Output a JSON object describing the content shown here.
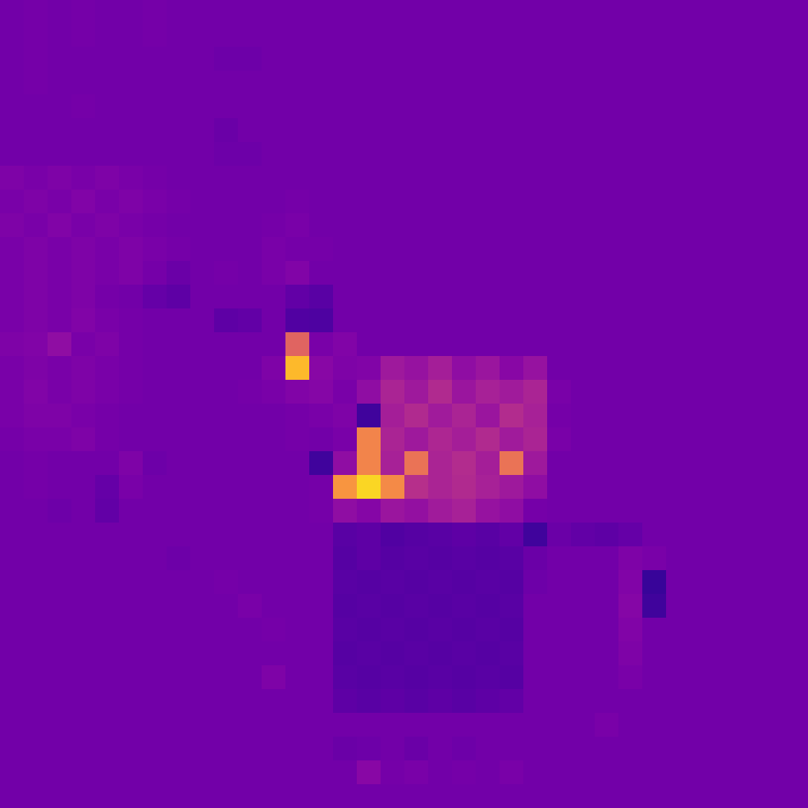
{
  "chart_data": {
    "type": "heatmap",
    "color": "plasma",
    "color_range": [
      0,
      100
    ],
    "tick_labels": false,
    "cells": [
      [
        22,
        23,
        22,
        23,
        22,
        22,
        23,
        22,
        22,
        22,
        22,
        22,
        22,
        22,
        22,
        22,
        22,
        22,
        22,
        22,
        22,
        22,
        22,
        22,
        22,
        22,
        22,
        22,
        22,
        22,
        22,
        22,
        22,
        22
      ],
      [
        22,
        23,
        22,
        23,
        22,
        22,
        23,
        22,
        22,
        22,
        22,
        22,
        22,
        22,
        22,
        22,
        22,
        22,
        22,
        22,
        22,
        22,
        22,
        22,
        22,
        22,
        22,
        22,
        22,
        22,
        22,
        22,
        22,
        22
      ],
      [
        22,
        23,
        22,
        22,
        22,
        22,
        22,
        22,
        22,
        21,
        21,
        22,
        22,
        22,
        22,
        22,
        22,
        22,
        22,
        22,
        22,
        22,
        22,
        22,
        22,
        22,
        22,
        22,
        22,
        22,
        22,
        22,
        22,
        22
      ],
      [
        22,
        23,
        22,
        22,
        22,
        22,
        22,
        22,
        22,
        22,
        22,
        22,
        22,
        22,
        22,
        22,
        22,
        22,
        22,
        22,
        22,
        22,
        22,
        22,
        22,
        22,
        22,
        22,
        22,
        22,
        22,
        22,
        22,
        22
      ],
      [
        22,
        22,
        22,
        23,
        22,
        22,
        22,
        22,
        22,
        22,
        22,
        22,
        22,
        22,
        22,
        22,
        22,
        22,
        22,
        22,
        22,
        22,
        22,
        22,
        22,
        22,
        22,
        22,
        22,
        22,
        22,
        22,
        22,
        22
      ],
      [
        22,
        22,
        22,
        22,
        22,
        22,
        22,
        22,
        22,
        20,
        22,
        22,
        22,
        22,
        22,
        22,
        22,
        22,
        22,
        22,
        22,
        22,
        22,
        22,
        22,
        22,
        22,
        22,
        22,
        22,
        22,
        22,
        22,
        22
      ],
      [
        22,
        22,
        22,
        22,
        22,
        22,
        22,
        22,
        22,
        21,
        21,
        22,
        22,
        22,
        22,
        22,
        22,
        22,
        22,
        22,
        22,
        22,
        22,
        22,
        22,
        22,
        22,
        22,
        22,
        22,
        22,
        22,
        22,
        22
      ],
      [
        25,
        24,
        25,
        24,
        25,
        24,
        23,
        22,
        22,
        22,
        22,
        22,
        22,
        22,
        22,
        22,
        22,
        22,
        22,
        22,
        22,
        22,
        22,
        22,
        22,
        22,
        22,
        22,
        22,
        22,
        22,
        22,
        22,
        22
      ],
      [
        24,
        25,
        24,
        26,
        24,
        25,
        24,
        23,
        22,
        22,
        22,
        22,
        23,
        22,
        22,
        22,
        22,
        22,
        22,
        22,
        22,
        22,
        22,
        22,
        22,
        22,
        22,
        22,
        22,
        22,
        22,
        22,
        22,
        22
      ],
      [
        25,
        24,
        26,
        24,
        25,
        24,
        23,
        22,
        22,
        22,
        22,
        23,
        24,
        22,
        22,
        22,
        22,
        22,
        22,
        22,
        22,
        22,
        22,
        22,
        22,
        22,
        22,
        22,
        22,
        22,
        22,
        22,
        22,
        22
      ],
      [
        24,
        25,
        24,
        25,
        24,
        25,
        24,
        23,
        22,
        22,
        22,
        24,
        23,
        23,
        22,
        22,
        22,
        22,
        22,
        22,
        22,
        22,
        22,
        22,
        22,
        22,
        22,
        22,
        22,
        22,
        22,
        22,
        22,
        22
      ],
      [
        24,
        25,
        24,
        25,
        24,
        25,
        23,
        20,
        22,
        23,
        22,
        24,
        26,
        22,
        22,
        22,
        22,
        22,
        22,
        22,
        22,
        22,
        22,
        22,
        22,
        22,
        22,
        22,
        22,
        22,
        22,
        22,
        22,
        22
      ],
      [
        24,
        25,
        24,
        25,
        23,
        22,
        19,
        17,
        22,
        22,
        22,
        22,
        18,
        16,
        22,
        22,
        22,
        22,
        22,
        22,
        22,
        22,
        22,
        22,
        22,
        22,
        22,
        22,
        22,
        22,
        22,
        22,
        22,
        22
      ],
      [
        24,
        25,
        24,
        26,
        24,
        23,
        22,
        22,
        22,
        17,
        18,
        22,
        14,
        13,
        22,
        22,
        22,
        22,
        22,
        22,
        22,
        22,
        22,
        22,
        22,
        22,
        22,
        22,
        22,
        22,
        22,
        22,
        22,
        22
      ],
      [
        25,
        26,
        30,
        24,
        25,
        23,
        22,
        22,
        22,
        22,
        22,
        22,
        60,
        24,
        26,
        22,
        22,
        22,
        22,
        22,
        22,
        22,
        22,
        22,
        22,
        22,
        22,
        22,
        22,
        22,
        22,
        22,
        22,
        22
      ],
      [
        24,
        25,
        24,
        25,
        24,
        23,
        22,
        22,
        22,
        22,
        22,
        25,
        85,
        28,
        25,
        26,
        34,
        32,
        36,
        30,
        33,
        28,
        32,
        22,
        22,
        22,
        22,
        22,
        22,
        22,
        22,
        22,
        22,
        22
      ],
      [
        24,
        26,
        24,
        25,
        24,
        23,
        22,
        22,
        22,
        22,
        23,
        24,
        26,
        27,
        24,
        30,
        38,
        34,
        40,
        33,
        37,
        35,
        38,
        24,
        22,
        22,
        22,
        22,
        22,
        22,
        22,
        22,
        22,
        22
      ],
      [
        24,
        25,
        25,
        24,
        23,
        22,
        22,
        22,
        22,
        22,
        22,
        22,
        23,
        24,
        25,
        10,
        36,
        40,
        35,
        38,
        33,
        41,
        37,
        23,
        22,
        22,
        22,
        22,
        22,
        22,
        22,
        22,
        22,
        22
      ],
      [
        23,
        24,
        24,
        25,
        23,
        22,
        22,
        22,
        22,
        22,
        22,
        22,
        23,
        22,
        24,
        70,
        38,
        34,
        39,
        36,
        40,
        35,
        38,
        24,
        22,
        22,
        22,
        22,
        22,
        22,
        22,
        22,
        22,
        22
      ],
      [
        22,
        23,
        22,
        22,
        22,
        25,
        21,
        22,
        22,
        22,
        22,
        22,
        22,
        10,
        30,
        70,
        37,
        65,
        38,
        41,
        36,
        65,
        34,
        22,
        22,
        22,
        22,
        22,
        22,
        22,
        22,
        22,
        22,
        22
      ],
      [
        22,
        23,
        22,
        22,
        19,
        24,
        22,
        22,
        22,
        22,
        22,
        22,
        22,
        23,
        75,
        92,
        72,
        42,
        38,
        40,
        37,
        34,
        30,
        22,
        22,
        22,
        22,
        22,
        22,
        22,
        22,
        22,
        22,
        22
      ],
      [
        22,
        22,
        21,
        22,
        18,
        22,
        22,
        22,
        22,
        22,
        22,
        22,
        22,
        23,
        30,
        27,
        33,
        31,
        35,
        37,
        32,
        30,
        23,
        22,
        22,
        22,
        22,
        22,
        22,
        22,
        22,
        22,
        22,
        22
      ],
      [
        22,
        22,
        22,
        22,
        22,
        22,
        22,
        22,
        22,
        22,
        22,
        22,
        22,
        22,
        16,
        17,
        14,
        15,
        16,
        17,
        16,
        18,
        10,
        20,
        18,
        17,
        19,
        22,
        22,
        22,
        22,
        22,
        22,
        22
      ],
      [
        22,
        22,
        22,
        22,
        22,
        22,
        22,
        21,
        22,
        22,
        22,
        22,
        22,
        22,
        15,
        17,
        15,
        16,
        15,
        16,
        15,
        16,
        20,
        22,
        22,
        22,
        25,
        24,
        22,
        22,
        22,
        22,
        22,
        22
      ],
      [
        22,
        22,
        22,
        22,
        22,
        22,
        22,
        22,
        22,
        23,
        22,
        22,
        22,
        22,
        16,
        15,
        16,
        15,
        16,
        15,
        16,
        15,
        21,
        22,
        22,
        22,
        26,
        8,
        22,
        22,
        22,
        22,
        22,
        22
      ],
      [
        22,
        22,
        22,
        22,
        22,
        22,
        22,
        22,
        22,
        22,
        24,
        22,
        22,
        22,
        15,
        16,
        15,
        16,
        15,
        16,
        15,
        16,
        22,
        22,
        22,
        22,
        27,
        10,
        22,
        22,
        22,
        22,
        22,
        22
      ],
      [
        22,
        22,
        22,
        22,
        22,
        22,
        22,
        22,
        22,
        22,
        22,
        23,
        22,
        22,
        16,
        15,
        16,
        15,
        16,
        15,
        16,
        15,
        22,
        22,
        22,
        22,
        26,
        22,
        22,
        22,
        22,
        22,
        22,
        22
      ],
      [
        22,
        22,
        22,
        22,
        22,
        22,
        22,
        22,
        22,
        22,
        22,
        22,
        22,
        22,
        15,
        16,
        15,
        16,
        15,
        16,
        15,
        16,
        22,
        22,
        22,
        22,
        25,
        22,
        22,
        22,
        22,
        22,
        22,
        22
      ],
      [
        22,
        22,
        22,
        22,
        22,
        22,
        22,
        22,
        22,
        22,
        22,
        25,
        22,
        22,
        16,
        15,
        16,
        15,
        16,
        15,
        16,
        15,
        22,
        22,
        22,
        22,
        24,
        22,
        22,
        22,
        22,
        22,
        22,
        22
      ],
      [
        22,
        22,
        22,
        22,
        22,
        22,
        22,
        22,
        22,
        22,
        22,
        22,
        22,
        22,
        17,
        16,
        17,
        16,
        17,
        16,
        17,
        18,
        22,
        22,
        22,
        22,
        22,
        22,
        22,
        22,
        22,
        22,
        22,
        22
      ],
      [
        22,
        22,
        22,
        22,
        22,
        22,
        22,
        22,
        22,
        22,
        22,
        22,
        22,
        22,
        22,
        22,
        22,
        22,
        22,
        22,
        22,
        22,
        22,
        22,
        22,
        24,
        22,
        22,
        22,
        22,
        22,
        22,
        22,
        22
      ],
      [
        22,
        22,
        22,
        22,
        22,
        22,
        22,
        22,
        22,
        22,
        22,
        22,
        22,
        22,
        20,
        21,
        22,
        20,
        22,
        21,
        22,
        22,
        22,
        22,
        22,
        22,
        22,
        22,
        22,
        22,
        22,
        22,
        22,
        22
      ],
      [
        22,
        22,
        22,
        22,
        22,
        22,
        22,
        22,
        22,
        22,
        22,
        22,
        22,
        22,
        22,
        28,
        23,
        24,
        22,
        23,
        22,
        24,
        22,
        22,
        22,
        22,
        22,
        22,
        22,
        22,
        22,
        22,
        22,
        22
      ],
      [
        22,
        22,
        22,
        22,
        22,
        22,
        22,
        22,
        22,
        22,
        22,
        22,
        22,
        22,
        22,
        22,
        22,
        22,
        22,
        22,
        22,
        22,
        22,
        22,
        22,
        22,
        22,
        22,
        22,
        22,
        22,
        22,
        22,
        22
      ]
    ]
  }
}
